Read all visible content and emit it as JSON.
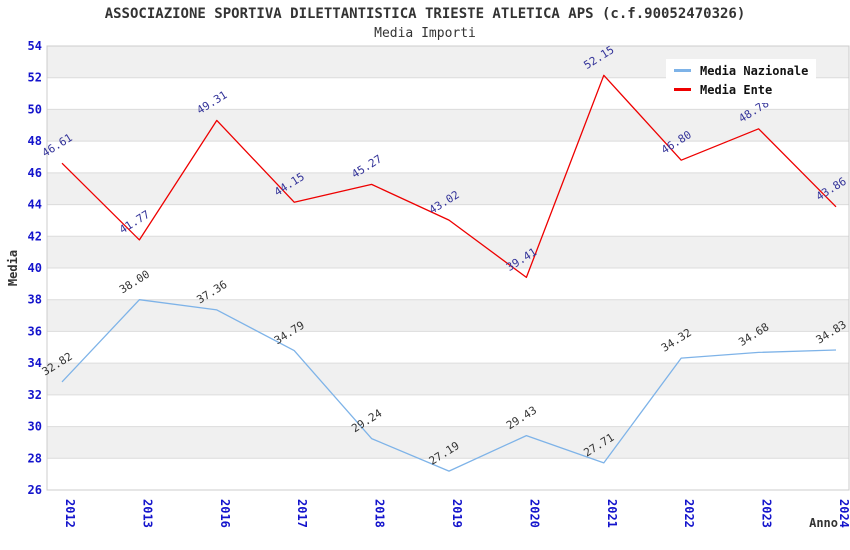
{
  "header": {
    "title": "ASSOCIAZIONE SPORTIVA DILETTANTISTICA TRIESTE ATLETICA APS (c.f.90052470326)",
    "subtitle": "Media Importi"
  },
  "legend": {
    "items": [
      {
        "label": "Media Nazionale"
      },
      {
        "label": "Media Ente"
      }
    ]
  },
  "chart_data": {
    "type": "line",
    "title": "ASSOCIAZIONE SPORTIVA DILETTANTISTICA TRIESTE ATLETICA APS (c.f.90052470326)",
    "subtitle": "Media Importi",
    "categories": [
      "2012",
      "2013",
      "2016",
      "2017",
      "2018",
      "2019",
      "2020",
      "2021",
      "2022",
      "2023",
      "2024"
    ],
    "series": [
      {
        "name": "Media Nazionale",
        "color": "#7EB3E8",
        "label_color": "#333333",
        "values": [
          32.82,
          38.0,
          37.36,
          34.79,
          29.24,
          27.19,
          29.43,
          27.71,
          34.32,
          34.68,
          34.83
        ]
      },
      {
        "name": "Media Ente",
        "color": "#EE0000",
        "label_color": "#333399",
        "values": [
          46.61,
          41.77,
          49.31,
          44.15,
          45.27,
          43.02,
          39.41,
          52.15,
          46.8,
          48.78,
          43.86
        ]
      }
    ],
    "xlabel": "Anno",
    "ylabel": "Media",
    "ylim": [
      26,
      54
    ],
    "ytick_step": 2,
    "legend_position": "top-right",
    "grid": "horizontal-bands",
    "band_colors": [
      "#F0F0F0",
      "#FFFFFF"
    ],
    "gridline_color": "#DCDCDC",
    "border_color": "#CCCCCC",
    "axis_tick_color": "#1414CC",
    "axis_title_color": "#333333"
  }
}
